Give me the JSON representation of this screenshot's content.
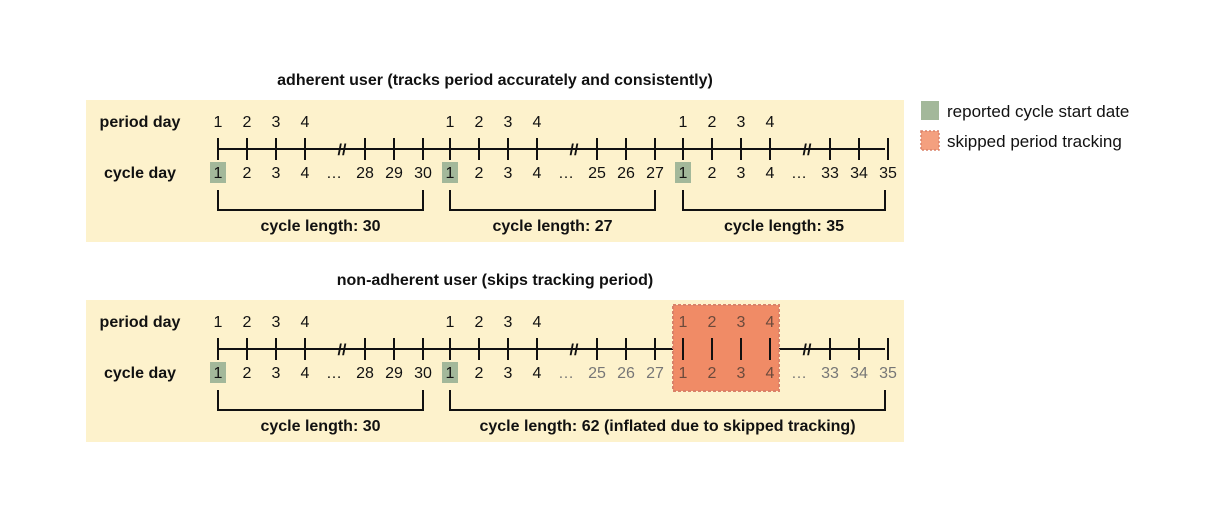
{
  "panels": [
    {
      "title": "adherent user (tracks period accurately and consistently)",
      "row_period_label": "period day",
      "row_cycle_label": "cycle day",
      "period_days": [
        "1",
        "2",
        "3",
        "4"
      ],
      "break_mark": "//",
      "ellipsis": "…",
      "cycles": [
        {
          "start": "1",
          "early": [
            "2",
            "3",
            "4"
          ],
          "late": [
            "28",
            "29",
            "30"
          ],
          "length_label": "cycle length: 30"
        },
        {
          "start": "1",
          "early": [
            "2",
            "3",
            "4"
          ],
          "late": [
            "25",
            "26",
            "27"
          ],
          "length_label": "cycle length: 27"
        },
        {
          "start": "1",
          "early": [
            "2",
            "3",
            "4"
          ],
          "late": [
            "33",
            "34",
            "35"
          ],
          "length_label": "cycle length: 35"
        }
      ]
    },
    {
      "title": "non-adherent user (skips tracking period)",
      "row_period_label": "period day",
      "row_cycle_label": "cycle day",
      "period_days": [
        "1",
        "2",
        "3",
        "4"
      ],
      "break_mark": "//",
      "ellipsis": "…",
      "cycles": [
        {
          "start": "1",
          "early": [
            "2",
            "3",
            "4"
          ],
          "late": [
            "28",
            "29",
            "30"
          ],
          "length_label": "cycle length: 30"
        },
        {
          "start": "1",
          "early": [
            "2",
            "3",
            "4"
          ],
          "late": [
            "25",
            "26",
            "27"
          ],
          "length_label": "cycle length: 62 (inflated due to skipped tracking)"
        },
        {
          "start": "1",
          "early": [
            "2",
            "3",
            "4"
          ],
          "late": [
            "33",
            "34",
            "35"
          ],
          "length_label": ""
        }
      ]
    }
  ],
  "legend": [
    {
      "label": "reported cycle start date",
      "color": "#a3b89a"
    },
    {
      "label": "skipped period tracking",
      "color": "#f4a07f"
    }
  ],
  "colors": {
    "panel_bg": "#fdf2cc",
    "start_marker": "#a3b89a",
    "skipped_fill": "#f08b66",
    "skipped_border": "#d9826a",
    "muted_text": "#777777"
  }
}
